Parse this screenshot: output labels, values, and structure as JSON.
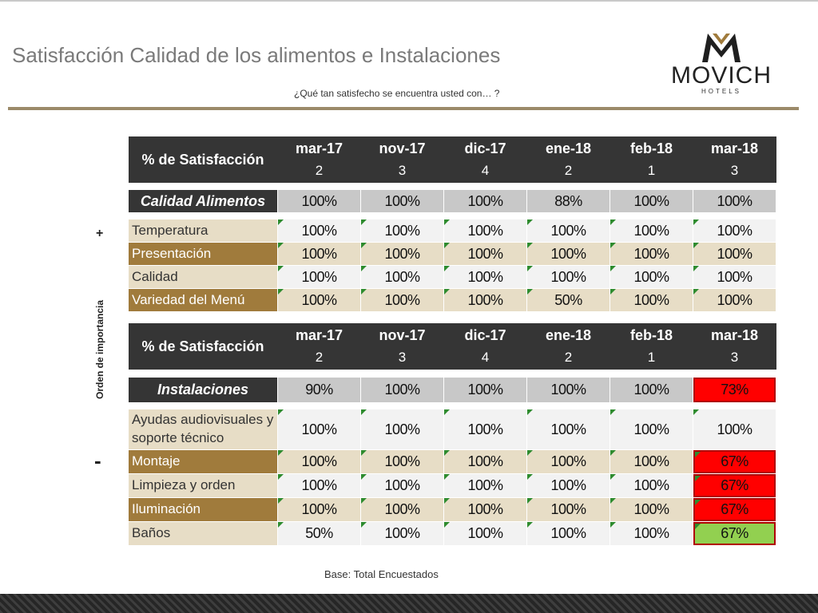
{
  "title": "Satisfacción Calidad de los alimentos e Instalaciones",
  "question": "¿Qué tan satisfecho se encuentra usted con… ?",
  "logo": {
    "word": "MOVICH",
    "sub": "HOTELS"
  },
  "side": {
    "label": "Orden de importancia",
    "plus": "+",
    "minus": "-"
  },
  "footer": {
    "base": "Base: Total Encuestados"
  },
  "colors": {
    "header": "#353535",
    "label_light": "#e7ddc6",
    "label_dark": "#a07b3c",
    "alert_red": "#ff0000",
    "ok_green": "#92d050"
  },
  "header_label": "% de Satisfacción",
  "periods": [
    {
      "month": "mar-17",
      "count": "2"
    },
    {
      "month": "nov-17",
      "count": "3"
    },
    {
      "month": "dic-17",
      "count": "4"
    },
    {
      "month": "ene-18",
      "count": "2"
    },
    {
      "month": "feb-18",
      "count": "1"
    },
    {
      "month": "mar-18",
      "count": "3"
    }
  ],
  "food": {
    "category": "Calidad Alimentos",
    "totals": [
      "100%",
      "100%",
      "100%",
      "88%",
      "100%",
      "100%"
    ],
    "rows": [
      {
        "label": "Temperatura",
        "values": [
          "100%",
          "100%",
          "100%",
          "100%",
          "100%",
          "100%"
        ]
      },
      {
        "label": "Presentación",
        "values": [
          "100%",
          "100%",
          "100%",
          "100%",
          "100%",
          "100%"
        ]
      },
      {
        "label": "Calidad",
        "values": [
          "100%",
          "100%",
          "100%",
          "100%",
          "100%",
          "100%"
        ]
      },
      {
        "label": "Variedad del Menú",
        "values": [
          "100%",
          "100%",
          "100%",
          "50%",
          "100%",
          "100%"
        ]
      }
    ]
  },
  "facilities": {
    "category": "Instalaciones",
    "totals": [
      "90%",
      "100%",
      "100%",
      "100%",
      "100%",
      "73%"
    ],
    "rows": [
      {
        "label": "Ayudas audiovisuales y soporte técnico",
        "values": [
          "100%",
          "100%",
          "100%",
          "100%",
          "100%",
          "100%"
        ]
      },
      {
        "label": "Montaje",
        "values": [
          "100%",
          "100%",
          "100%",
          "100%",
          "100%",
          "67%"
        ]
      },
      {
        "label": "Limpieza y orden",
        "values": [
          "100%",
          "100%",
          "100%",
          "100%",
          "100%",
          "67%"
        ]
      },
      {
        "label": "Iluminación",
        "values": [
          "100%",
          "100%",
          "100%",
          "100%",
          "100%",
          "67%"
        ]
      },
      {
        "label": "Baños",
        "values": [
          "50%",
          "100%",
          "100%",
          "100%",
          "100%",
          "67%"
        ]
      }
    ]
  }
}
